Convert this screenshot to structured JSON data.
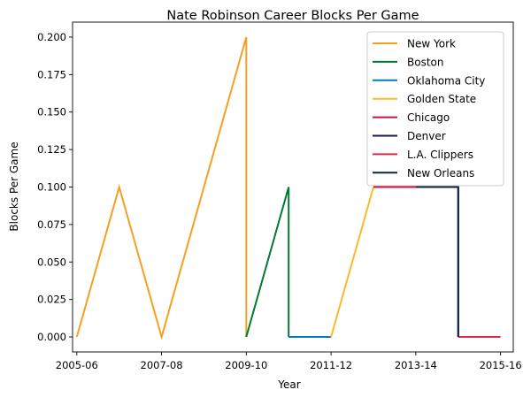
{
  "chart_data": {
    "type": "line",
    "title": "Nate Robinson Career Blocks Per Game",
    "xlabel": "Year",
    "ylabel": "Blocks Per Game",
    "x_ticks": [
      "2005-06",
      "2007-08",
      "2009-10",
      "2011-12",
      "2013-14",
      "2015-16"
    ],
    "y_ticks": [
      "0.000",
      "0.025",
      "0.050",
      "0.075",
      "0.100",
      "0.125",
      "0.150",
      "0.175",
      "0.200"
    ],
    "xlim": [
      -0.1,
      10.3
    ],
    "ylim": [
      -0.01,
      0.21
    ],
    "grid": false,
    "legend_position": "top-right",
    "series": [
      {
        "name": "New York",
        "color": "#F5A021",
        "points": [
          [
            0,
            0.0
          ],
          [
            1,
            0.1
          ],
          [
            2,
            0.0
          ],
          [
            4,
            0.2
          ],
          [
            4,
            0.0
          ]
        ]
      },
      {
        "name": "Boston",
        "color": "#007A33",
        "points": [
          [
            4,
            0.0
          ],
          [
            5,
            0.1
          ],
          [
            5,
            0.0
          ]
        ]
      },
      {
        "name": "Oklahoma City",
        "color": "#007AC1",
        "points": [
          [
            5,
            0.0
          ],
          [
            6,
            0.0
          ]
        ]
      },
      {
        "name": "Golden State",
        "color": "#FDB927",
        "points": [
          [
            6,
            0.0
          ],
          [
            7,
            0.1
          ]
        ]
      },
      {
        "name": "Chicago",
        "color": "#CE1141",
        "points": [
          [
            7,
            0.1
          ],
          [
            8,
            0.1
          ]
        ]
      },
      {
        "name": "Denver",
        "color": "#0E2240",
        "points": [
          [
            8,
            0.1
          ],
          [
            9,
            0.1
          ],
          [
            9,
            0.0
          ]
        ]
      },
      {
        "name": "L.A. Clippers",
        "color": "#E8254A",
        "points": [
          [
            9,
            0.0
          ],
          [
            10,
            0.0
          ]
        ]
      },
      {
        "name": "New Orleans",
        "color": "#0C2340",
        "points": [
          [
            9,
            0.1
          ],
          [
            9,
            0.0
          ]
        ]
      }
    ]
  }
}
